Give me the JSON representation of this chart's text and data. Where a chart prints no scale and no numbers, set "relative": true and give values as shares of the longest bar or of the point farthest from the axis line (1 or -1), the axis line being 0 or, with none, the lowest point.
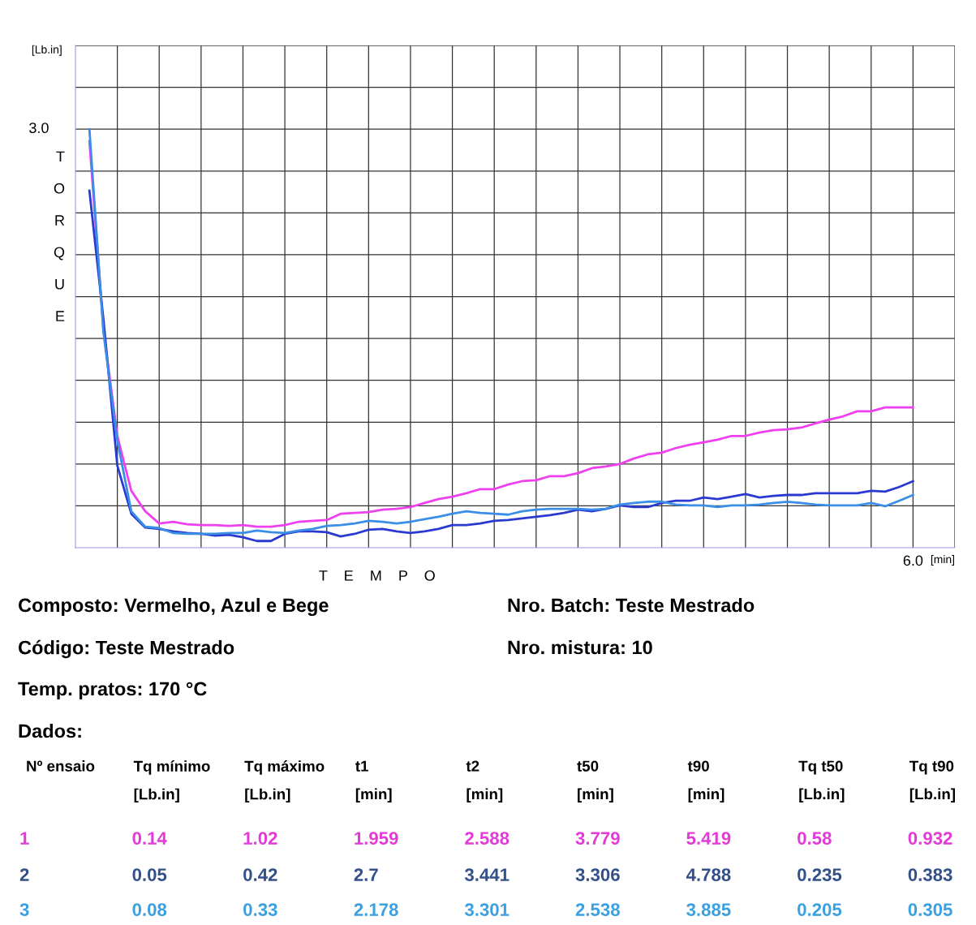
{
  "chart_data": [
    {
      "type": "line",
      "relative": true,
      "grid": true,
      "xlabel": "T E M P O",
      "ylabel": "TORQUE",
      "annotations": [
        "[Lb.in]",
        "3.0",
        "6.0",
        "[min]"
      ],
      "categories": [
        null,
        null,
        null,
        null,
        null,
        null,
        null,
        null,
        null,
        null,
        null,
        null,
        null,
        null,
        null,
        null,
        null,
        null,
        null,
        null,
        null,
        null,
        null,
        null,
        null,
        null,
        null,
        null,
        null,
        null,
        null,
        null,
        null,
        null,
        null,
        null,
        null,
        null,
        null,
        null,
        null,
        null,
        null,
        null,
        null,
        null,
        null,
        null,
        null,
        null,
        null,
        null,
        null,
        null,
        null,
        null,
        null,
        null,
        null,
        null
      ],
      "series": [
        {
          "color": "#ee40ee",
          "values": [
            0.971,
            0.523,
            0.267,
            0.136,
            0.087,
            0.058,
            0.062,
            0.056,
            0.054,
            0.054,
            0.052,
            0.054,
            0.05,
            0.05,
            0.054,
            0.062,
            0.064,
            0.066,
            0.081,
            0.083,
            0.085,
            0.091,
            0.093,
            0.097,
            0.107,
            0.116,
            0.122,
            0.13,
            0.14,
            0.14,
            0.151,
            0.159,
            0.161,
            0.171,
            0.171,
            0.178,
            0.19,
            0.194,
            0.2,
            0.213,
            0.223,
            0.227,
            0.238,
            0.246,
            0.252,
            0.258,
            0.267,
            0.267,
            0.275,
            0.281,
            0.283,
            0.287,
            0.297,
            0.306,
            0.314,
            0.326,
            0.326,
            0.335,
            0.335,
            0.335
          ]
        },
        {
          "color": "#2a3ad0",
          "values": [
            0.853,
            0.548,
            0.196,
            0.081,
            0.048,
            0.045,
            0.039,
            0.035,
            0.033,
            0.029,
            0.031,
            0.025,
            0.016,
            0.016,
            0.033,
            0.039,
            0.039,
            0.037,
            0.027,
            0.033,
            0.043,
            0.045,
            0.039,
            0.035,
            0.039,
            0.045,
            0.054,
            0.054,
            0.058,
            0.064,
            0.066,
            0.07,
            0.074,
            0.078,
            0.083,
            0.091,
            0.087,
            0.093,
            0.101,
            0.097,
            0.097,
            0.107,
            0.112,
            0.112,
            0.12,
            0.116,
            0.122,
            0.128,
            0.12,
            0.124,
            0.126,
            0.126,
            0.13,
            0.13,
            0.13,
            0.13,
            0.136,
            0.134,
            0.145,
            0.159
          ]
        },
        {
          "color": "#3a8ee6",
          "values": [
            1,
            0.516,
            0.256,
            0.087,
            0.05,
            0.047,
            0.035,
            0.033,
            0.033,
            0.033,
            0.035,
            0.035,
            0.041,
            0.037,
            0.035,
            0.041,
            0.045,
            0.052,
            0.054,
            0.058,
            0.064,
            0.062,
            0.058,
            0.062,
            0.068,
            0.074,
            0.081,
            0.087,
            0.083,
            0.081,
            0.079,
            0.087,
            0.091,
            0.093,
            0.093,
            0.093,
            0.091,
            0.093,
            0.103,
            0.107,
            0.11,
            0.11,
            0.103,
            0.101,
            0.101,
            0.097,
            0.101,
            0.101,
            0.103,
            0.107,
            0.11,
            0.107,
            0.103,
            0.101,
            0.101,
            0.101,
            0.107,
            0.099,
            0.112,
            0.126
          ]
        }
      ]
    },
    {
      "type": "other",
      "annotations": [
        "Composto: Vermelho, Azul e Bege",
        "Código: Teste Mestrado",
        "Temp. pratos: 170 °C",
        "Nro. Batch: Teste Mestrado",
        "Nro. mistura: 10"
      ]
    },
    {
      "type": "other",
      "title": "Dados:",
      "colors": [
        "#000000",
        "#e23ad6",
        "#34508a",
        "#3aa0e0"
      ],
      "annotations": [
        "Nº ensaio",
        "Tq mínimo\n[Lb.in]",
        "Tq máximo\n[Lb.in]",
        "t1\n[min]",
        "t2\n[min]",
        "t50\n[min]",
        "t90\n[min]",
        "Tq t50\n[Lb.in]",
        "Tq t90\n[Lb.in]",
        "1",
        "0.14",
        "1.02",
        "1.959",
        "2.588",
        "3.779",
        "5.419",
        "0.58",
        "0.932",
        "2",
        "0.05",
        "0.42",
        "2.7",
        "3.441",
        "3.306",
        "4.788",
        "0.235",
        "0.383",
        "3",
        "0.08",
        "0.33",
        "2.178",
        "3.301",
        "2.538",
        "3.885",
        "0.205",
        "0.305"
      ]
    }
  ]
}
